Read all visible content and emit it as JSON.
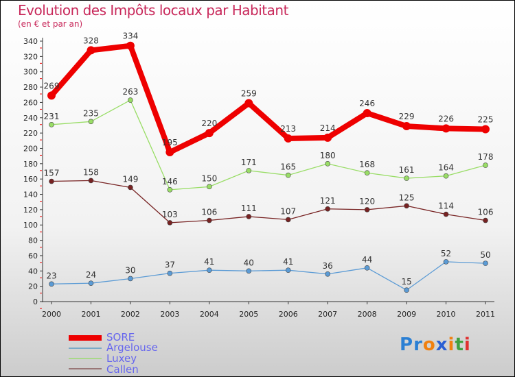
{
  "chart_data": {
    "type": "line",
    "title": "Evolution des Impôts locaux par Habitant",
    "subtitle": "(en € et par an)",
    "x": [
      "2000",
      "2001",
      "2002",
      "2003",
      "2004",
      "2005",
      "2006",
      "2007",
      "2008",
      "2009",
      "2010",
      "2011"
    ],
    "ylim": [
      0,
      340
    ],
    "yticks": [
      0,
      20,
      40,
      60,
      80,
      100,
      120,
      140,
      160,
      180,
      200,
      220,
      240,
      260,
      280,
      300,
      320,
      340
    ],
    "legend_position": "bottom-left",
    "series": [
      {
        "name": "SORE",
        "color": "#ee0000",
        "values": [
          269,
          328,
          334,
          195,
          220,
          259,
          213,
          214,
          246,
          229,
          226,
          225
        ]
      },
      {
        "name": "Argelouse",
        "color": "#5b9bd5",
        "values": [
          23,
          24,
          30,
          37,
          41,
          40,
          41,
          36,
          44,
          15,
          52,
          50
        ]
      },
      {
        "name": "Luxey",
        "color": "#99dd66",
        "values": [
          231,
          235,
          263,
          146,
          150,
          171,
          165,
          180,
          168,
          161,
          164,
          178
        ]
      },
      {
        "name": "Callen",
        "color": "#772222",
        "values": [
          157,
          158,
          149,
          103,
          106,
          111,
          107,
          121,
          120,
          125,
          114,
          106
        ]
      }
    ]
  },
  "logo": "Proxiti"
}
